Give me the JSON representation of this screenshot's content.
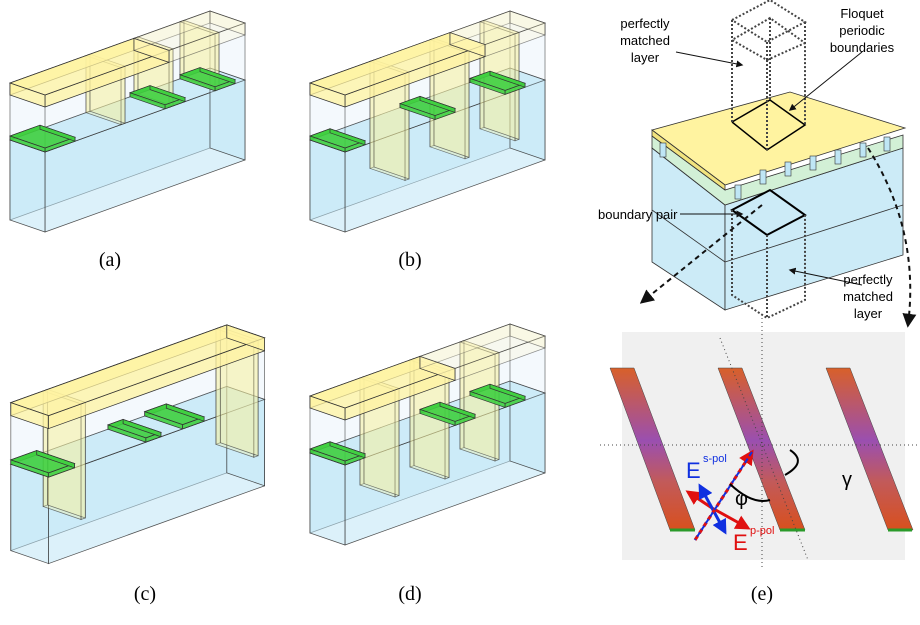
{
  "panels": [
    {
      "label": "(a)"
    },
    {
      "label": "(b)"
    },
    {
      "label": "(c)"
    },
    {
      "label": "(d)"
    },
    {
      "label": "(e)"
    }
  ],
  "annotations": {
    "pml_top": [
      "perfectly",
      "matched",
      "layer"
    ],
    "floquet": [
      "Floquet",
      "periodic",
      "boundaries"
    ],
    "boundary_pair": "boundary pair",
    "pml_bottom": [
      "perfectly",
      "matched",
      "layer"
    ]
  },
  "symbols": {
    "e_s": "E",
    "s_pol": "s-pol",
    "e_p": "E",
    "p_pol": "p-pol",
    "phi": "φ",
    "gamma": "γ"
  }
}
